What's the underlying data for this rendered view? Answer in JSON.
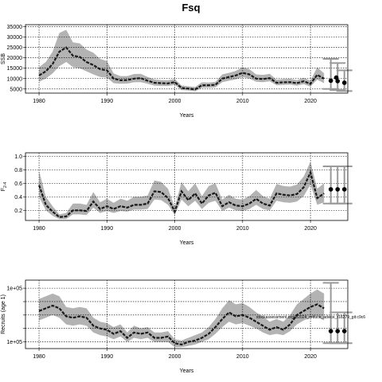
{
  "page": {
    "title": "Fsq"
  },
  "watermark": "stockassessment.org/sf2024_reduce_advice_r18279_git:c9c6",
  "chart_data": [
    {
      "type": "line",
      "xlabel": "Years",
      "ylabel": "SSB",
      "xlim": [
        1978,
        2025.5
      ],
      "ylim": [
        3000,
        36000
      ],
      "xticks": [
        1980,
        1990,
        2000,
        2010,
        2020
      ],
      "yticks": [
        5000,
        10000,
        15000,
        20000,
        25000,
        30000,
        35000
      ],
      "ytick_labels": [
        "5000",
        "10000",
        "15000",
        "20000",
        "25000",
        "30000",
        "35000"
      ],
      "grid": true,
      "x": [
        1980,
        1981,
        1982,
        1983,
        1984,
        1985,
        1986,
        1987,
        1988,
        1989,
        1990,
        1991,
        1992,
        1993,
        1994,
        1995,
        1996,
        1997,
        1998,
        1999,
        2000,
        2001,
        2002,
        2003,
        2004,
        2005,
        2006,
        2007,
        2008,
        2009,
        2010,
        2011,
        2012,
        2013,
        2014,
        2015,
        2016,
        2017,
        2018,
        2019,
        2020,
        2021,
        2022
      ],
      "estimate": [
        11500,
        13500,
        17000,
        23000,
        25000,
        21000,
        20500,
        18000,
        16500,
        14500,
        14000,
        10000,
        9200,
        9300,
        10000,
        10200,
        9000,
        8000,
        7800,
        7700,
        8300,
        5500,
        5200,
        4800,
        6800,
        6800,
        7000,
        10000,
        10800,
        11500,
        12800,
        12000,
        10000,
        9800,
        10200,
        8000,
        8200,
        8300,
        7800,
        8700,
        7500,
        11800,
        10000
      ],
      "lower": [
        8500,
        10000,
        12500,
        16000,
        18000,
        15500,
        15000,
        13500,
        12000,
        10800,
        10500,
        7800,
        7500,
        7600,
        8200,
        8300,
        7500,
        6600,
        6500,
        6400,
        7000,
        4500,
        4300,
        3900,
        5600,
        5600,
        5800,
        8300,
        9000,
        9600,
        10800,
        10000,
        8500,
        8300,
        8700,
        6800,
        7000,
        7100,
        6600,
        7300,
        6200,
        9500,
        7800
      ],
      "upper": [
        15500,
        18000,
        23000,
        32000,
        33500,
        27500,
        27000,
        24000,
        22500,
        19500,
        18500,
        12500,
        11200,
        11200,
        12200,
        12300,
        10800,
        9600,
        9300,
        9200,
        9800,
        6700,
        6300,
        5900,
        8200,
        8100,
        8400,
        12000,
        12800,
        13700,
        15500,
        14500,
        12000,
        11800,
        12300,
        9500,
        9800,
        9900,
        9300,
        10400,
        9000,
        15500,
        12500
      ],
      "forecast": {
        "x": [
          2023,
          2024,
          2025
        ],
        "median": [
          9000,
          8800,
          8000
        ],
        "lower": [
          5000,
          4500,
          4000
        ],
        "upper": [
          19500,
          17500,
          14000
        ],
        "extra_points": [
          {
            "x": 2023.8,
            "y": 10500
          }
        ]
      }
    },
    {
      "type": "line",
      "xlabel": "Years",
      "ylabel": "F2-4",
      "ylabel_main": "F",
      "ylabel_sub": "2-4",
      "xlim": [
        1978,
        2025.5
      ],
      "ylim": [
        0.05,
        1.05
      ],
      "xticks": [
        1980,
        1990,
        2000,
        2010,
        2020
      ],
      "yticks": [
        0.2,
        0.4,
        0.6,
        0.8,
        1.0
      ],
      "ytick_labels": [
        "0.2",
        "0.4",
        "0.6",
        "0.8",
        "1.0"
      ],
      "grid": true,
      "x": [
        1980,
        1981,
        1982,
        1983,
        1984,
        1985,
        1986,
        1987,
        1988,
        1989,
        1990,
        1991,
        1992,
        1993,
        1994,
        1995,
        1996,
        1997,
        1998,
        1999,
        2000,
        2001,
        2002,
        2003,
        2004,
        2005,
        2006,
        2007,
        2008,
        2009,
        2010,
        2011,
        2012,
        2013,
        2014,
        2015,
        2016,
        2017,
        2018,
        2019,
        2020,
        2021,
        2022
      ],
      "estimate": [
        0.57,
        0.28,
        0.18,
        0.1,
        0.11,
        0.2,
        0.2,
        0.19,
        0.33,
        0.22,
        0.26,
        0.22,
        0.26,
        0.24,
        0.28,
        0.28,
        0.3,
        0.48,
        0.47,
        0.38,
        0.18,
        0.48,
        0.35,
        0.45,
        0.3,
        0.42,
        0.46,
        0.26,
        0.32,
        0.27,
        0.26,
        0.3,
        0.37,
        0.3,
        0.27,
        0.45,
        0.43,
        0.42,
        0.44,
        0.54,
        0.76,
        0.38,
        0.45
      ],
      "lower": [
        0.4,
        0.2,
        0.12,
        0.07,
        0.07,
        0.14,
        0.14,
        0.13,
        0.24,
        0.16,
        0.19,
        0.16,
        0.19,
        0.18,
        0.21,
        0.21,
        0.22,
        0.36,
        0.35,
        0.28,
        0.13,
        0.36,
        0.26,
        0.34,
        0.22,
        0.31,
        0.34,
        0.19,
        0.24,
        0.2,
        0.19,
        0.22,
        0.28,
        0.22,
        0.2,
        0.34,
        0.32,
        0.31,
        0.33,
        0.41,
        0.58,
        0.28,
        0.32
      ],
      "upper": [
        0.78,
        0.4,
        0.26,
        0.14,
        0.16,
        0.3,
        0.3,
        0.28,
        0.47,
        0.32,
        0.37,
        0.31,
        0.37,
        0.34,
        0.4,
        0.4,
        0.42,
        0.64,
        0.62,
        0.52,
        0.25,
        0.62,
        0.48,
        0.6,
        0.41,
        0.56,
        0.6,
        0.36,
        0.43,
        0.37,
        0.36,
        0.41,
        0.5,
        0.41,
        0.37,
        0.59,
        0.56,
        0.55,
        0.58,
        0.7,
        0.92,
        0.52,
        0.6
      ],
      "forecast": {
        "x": [
          2023,
          2024,
          2025
        ],
        "median": [
          0.51,
          0.51,
          0.51
        ],
        "lower": [
          0.3,
          0.3,
          0.3
        ],
        "upper": [
          0.85,
          0.85,
          0.85
        ]
      }
    },
    {
      "type": "line",
      "xlabel": "Years",
      "ylabel": "Recruits (age 1)",
      "xlim": [
        1978,
        2025.5
      ],
      "ylim": [
        0.5,
        5.6
      ],
      "xticks": [
        1980,
        1990,
        2000,
        2010,
        2020
      ],
      "yticks": [
        1,
        2,
        3,
        4,
        5
      ],
      "ytick_labels": [
        "1e+05",
        "",
        "",
        "",
        "1e+05"
      ],
      "grid": true,
      "x": [
        1980,
        1981,
        1982,
        1983,
        1984,
        1985,
        1986,
        1987,
        1988,
        1989,
        1990,
        1991,
        1992,
        1993,
        1994,
        1995,
        1996,
        1997,
        1998,
        1999,
        2000,
        2001,
        2002,
        2003,
        2004,
        2005,
        2006,
        2007,
        2008,
        2009,
        2010,
        2011,
        2012,
        2013,
        2014,
        2015,
        2016,
        2017,
        2018,
        2019,
        2020,
        2021,
        2022
      ],
      "estimate": [
        3.3,
        3.5,
        3.7,
        3.5,
        2.9,
        2.8,
        2.9,
        2.8,
        2.2,
        2.0,
        1.9,
        1.6,
        1.8,
        1.3,
        1.7,
        1.6,
        1.7,
        1.3,
        1.3,
        1.4,
        0.9,
        0.8,
        1.0,
        1.1,
        1.3,
        1.6,
        2.1,
        2.7,
        3.2,
        2.9,
        3.0,
        2.8,
        2.5,
        2.2,
        1.9,
        2.1,
        1.9,
        2.3,
        3.0,
        3.3,
        3.6,
        3.8,
        3.5
      ],
      "lower": [
        2.6,
        2.8,
        3.0,
        2.8,
        2.3,
        2.2,
        2.3,
        2.2,
        1.7,
        1.5,
        1.4,
        1.2,
        1.4,
        1.0,
        1.3,
        1.2,
        1.3,
        1.0,
        1.0,
        1.0,
        0.6,
        0.6,
        0.7,
        0.8,
        1.0,
        1.2,
        1.6,
        2.1,
        2.5,
        2.3,
        2.4,
        2.2,
        2.0,
        1.7,
        1.5,
        1.6,
        1.5,
        1.8,
        2.3,
        2.6,
        2.8,
        2.9,
        2.6
      ],
      "upper": [
        4.2,
        4.4,
        4.6,
        4.4,
        3.6,
        3.5,
        3.6,
        3.5,
        2.8,
        2.5,
        2.4,
        2.1,
        2.3,
        1.7,
        2.2,
        2.0,
        2.1,
        1.7,
        1.7,
        1.8,
        1.2,
        1.1,
        1.3,
        1.5,
        1.7,
        2.1,
        2.7,
        3.5,
        4.1,
        3.8,
        3.9,
        3.6,
        3.2,
        2.9,
        2.5,
        2.7,
        2.5,
        3.0,
        3.8,
        4.2,
        4.6,
        4.9,
        4.6
      ],
      "forecast": {
        "x": [
          2023,
          2024,
          2025
        ],
        "median": [
          1.8,
          1.8,
          1.8
        ],
        "lower": [
          0.9,
          0.9,
          0.9
        ],
        "upper": [
          5.4,
          3.2,
          3.2
        ]
      }
    }
  ]
}
